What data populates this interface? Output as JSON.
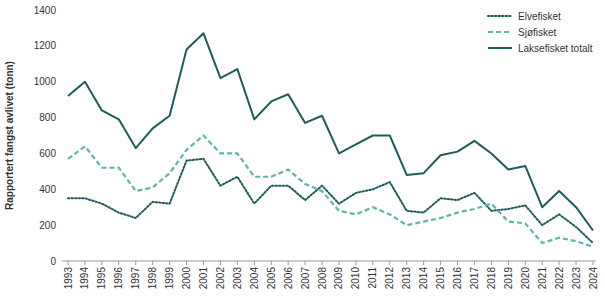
{
  "chart_data": {
    "type": "line",
    "y_label": "Rapportert fangst avlivet (tonn)",
    "categories": [
      "1993",
      "1994",
      "1995",
      "1996",
      "1997",
      "1998",
      "1999",
      "2000",
      "2001",
      "2002",
      "2003",
      "2004",
      "2005",
      "2006",
      "2007",
      "2008",
      "2009",
      "2010",
      "2011",
      "2012",
      "2013",
      "2014",
      "2015",
      "2016",
      "2017",
      "2018",
      "2019",
      "2020",
      "2021",
      "2022",
      "2023",
      "2024"
    ],
    "series": [
      {
        "name": "Elvefisket",
        "color": "#1f5c5c",
        "line_style": "dotted",
        "values": [
          350,
          350,
          320,
          270,
          240,
          330,
          320,
          560,
          570,
          420,
          470,
          320,
          420,
          420,
          340,
          420,
          320,
          380,
          400,
          440,
          280,
          270,
          350,
          340,
          380,
          280,
          290,
          310,
          200,
          260,
          190,
          100
        ]
      },
      {
        "name": "Sjøfisket",
        "color": "#5fb3ad",
        "line_style": "dashed",
        "values": [
          570,
          640,
          520,
          520,
          390,
          410,
          490,
          620,
          700,
          600,
          600,
          470,
          470,
          510,
          430,
          390,
          280,
          260,
          300,
          260,
          200,
          220,
          240,
          270,
          290,
          320,
          220,
          210,
          100,
          130,
          110,
          80
        ]
      },
      {
        "name": "Laksefisket totalt",
        "color": "#1f5c5c",
        "line_style": "solid",
        "values": [
          920,
          1000,
          840,
          790,
          630,
          740,
          810,
          1180,
          1270,
          1020,
          1070,
          790,
          890,
          930,
          770,
          810,
          600,
          650,
          700,
          700,
          480,
          490,
          590,
          610,
          670,
          600,
          510,
          530,
          300,
          390,
          300,
          170
        ]
      }
    ],
    "ylim": [
      0,
      1400
    ],
    "yticks": [
      0,
      200,
      400,
      600,
      800,
      1000,
      1200,
      1400
    ],
    "grid": false,
    "legend": "upper right"
  }
}
